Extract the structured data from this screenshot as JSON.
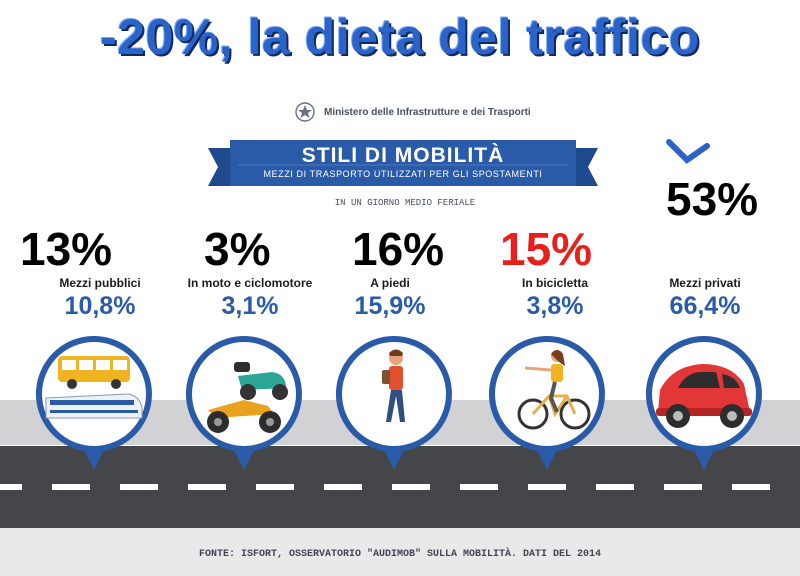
{
  "headline": "-20%, la dieta del traffico",
  "ministry": {
    "name": "Ministero delle Infrastrutture e dei Trasporti",
    "emblem_icon": "italian-republic-emblem-icon"
  },
  "banner": {
    "title": "STILI DI MOBILITÀ",
    "subtitle": "MEZZI DI TRASPORTO UTILIZZATI PER GLI SPOSTAMENTI",
    "day_label": "IN UN GIORNO MEDIO FERIALE"
  },
  "overlay": {
    "private_target": "53%",
    "arrow_icon": "down-arrow-icon"
  },
  "modes": [
    {
      "key": "public",
      "target": "13%",
      "target_color": "#000000",
      "label": "Mezzi pubblici",
      "value": "10,8%",
      "icon": "bus-train-icon"
    },
    {
      "key": "moto",
      "target": "3%",
      "target_color": "#000000",
      "label": "In moto e ciclomotore",
      "value": "3,1%",
      "icon": "motorcycle-scooter-icon"
    },
    {
      "key": "walk",
      "target": "16%",
      "target_color": "#000000",
      "label": "A piedi",
      "value": "15,9%",
      "icon": "pedestrian-icon"
    },
    {
      "key": "bike",
      "target": "15%",
      "target_color": "#e8201c",
      "label": "In bicicletta",
      "value": "3,8%",
      "icon": "cyclist-icon"
    },
    {
      "key": "car",
      "target": "",
      "target_color": "#000000",
      "label": "Mezzi privati",
      "value": "66,4%",
      "icon": "car-icon"
    }
  ],
  "colors": {
    "headline": "#2b63c6",
    "banner": "#2a5ba8",
    "pin": "#2a5ba8",
    "accent_red": "#e8201c",
    "road": "#444649"
  },
  "footer": "FONTE: ISFORT, OSSERVATORIO \"AUDIMOB\" SULLA MOBILITÀ. DATI DEL 2014"
}
